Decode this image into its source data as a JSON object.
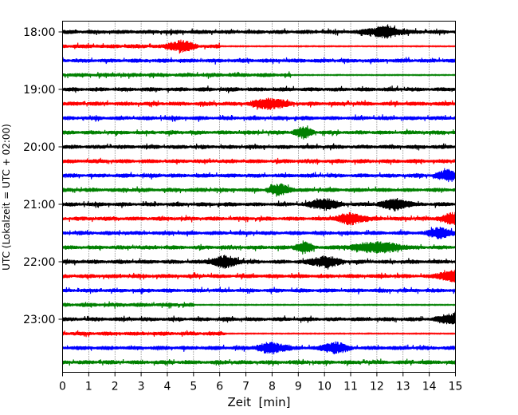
{
  "chart_data": {
    "type": "line",
    "title": "",
    "xlabel": "Zeit  [min]",
    "ylabel": "UTC (Lokalzeit = UTC + 02:00)",
    "xlim": [
      0,
      15
    ],
    "x_ticks": [
      0,
      1,
      2,
      3,
      4,
      5,
      6,
      7,
      8,
      9,
      10,
      11,
      12,
      13,
      14,
      15
    ],
    "grid": "vertical-dotted",
    "y_tick_labels": [
      "18:00",
      "19:00",
      "20:00",
      "21:00",
      "22:00",
      "23:00"
    ],
    "traces_per_hour": 4,
    "trace_minutes": 15,
    "color_cycle": [
      "#000000",
      "#ff0000",
      "#0000ff",
      "#008000"
    ],
    "traces": [
      {
        "start": "18:00",
        "color": "#000000",
        "bursts": [
          [
            12.3,
            1.0
          ]
        ]
      },
      {
        "start": "18:15",
        "color": "#ff0000",
        "bursts": [
          [
            4.5,
            0.7
          ]
        ],
        "end_minute": 6.0
      },
      {
        "start": "18:30",
        "color": "#0000ff",
        "bursts": []
      },
      {
        "start": "18:45",
        "color": "#008000",
        "bursts": [],
        "end_minute": 8.7
      },
      {
        "start": "19:00",
        "color": "#000000",
        "bursts": []
      },
      {
        "start": "19:15",
        "color": "#ff0000",
        "bursts": [
          [
            7.9,
            0.9
          ]
        ]
      },
      {
        "start": "19:30",
        "color": "#0000ff",
        "bursts": []
      },
      {
        "start": "19:45",
        "color": "#008000",
        "bursts": [
          [
            9.2,
            0.5
          ]
        ]
      },
      {
        "start": "20:00",
        "color": "#000000",
        "bursts": []
      },
      {
        "start": "20:15",
        "color": "#ff0000",
        "bursts": []
      },
      {
        "start": "20:30",
        "color": "#0000ff",
        "bursts": [
          [
            14.8,
            0.7
          ]
        ]
      },
      {
        "start": "20:45",
        "color": "#008000",
        "bursts": [
          [
            8.3,
            0.6
          ]
        ]
      },
      {
        "start": "21:00",
        "color": "#000000",
        "bursts": [
          [
            10.0,
            0.8
          ],
          [
            12.7,
            0.8
          ]
        ]
      },
      {
        "start": "21:15",
        "color": "#ff0000",
        "bursts": [
          [
            11.0,
            0.8
          ],
          [
            14.9,
            0.7
          ]
        ]
      },
      {
        "start": "21:30",
        "color": "#0000ff",
        "bursts": [
          [
            14.4,
            0.6
          ]
        ]
      },
      {
        "start": "21:45",
        "color": "#008000",
        "bursts": [
          [
            12.0,
            1.4
          ],
          [
            9.2,
            0.5
          ]
        ]
      },
      {
        "start": "22:00",
        "color": "#000000",
        "bursts": [
          [
            6.2,
            0.8
          ],
          [
            10.0,
            0.8
          ]
        ]
      },
      {
        "start": "22:15",
        "color": "#ff0000",
        "bursts": [
          [
            14.9,
            0.8
          ]
        ]
      },
      {
        "start": "22:30",
        "color": "#0000ff",
        "bursts": []
      },
      {
        "start": "22:45",
        "color": "#008000",
        "bursts": [],
        "end_minute": 5.0
      },
      {
        "start": "23:00",
        "color": "#000000",
        "bursts": [
          [
            14.9,
            0.8
          ]
        ]
      },
      {
        "start": "23:15",
        "color": "#ff0000",
        "bursts": [],
        "end_minute": 6.2
      },
      {
        "start": "23:30",
        "color": "#0000ff",
        "bursts": [
          [
            8.0,
            0.8
          ],
          [
            10.4,
            0.7
          ]
        ]
      },
      {
        "start": "23:45",
        "color": "#008000",
        "bursts": []
      }
    ]
  }
}
